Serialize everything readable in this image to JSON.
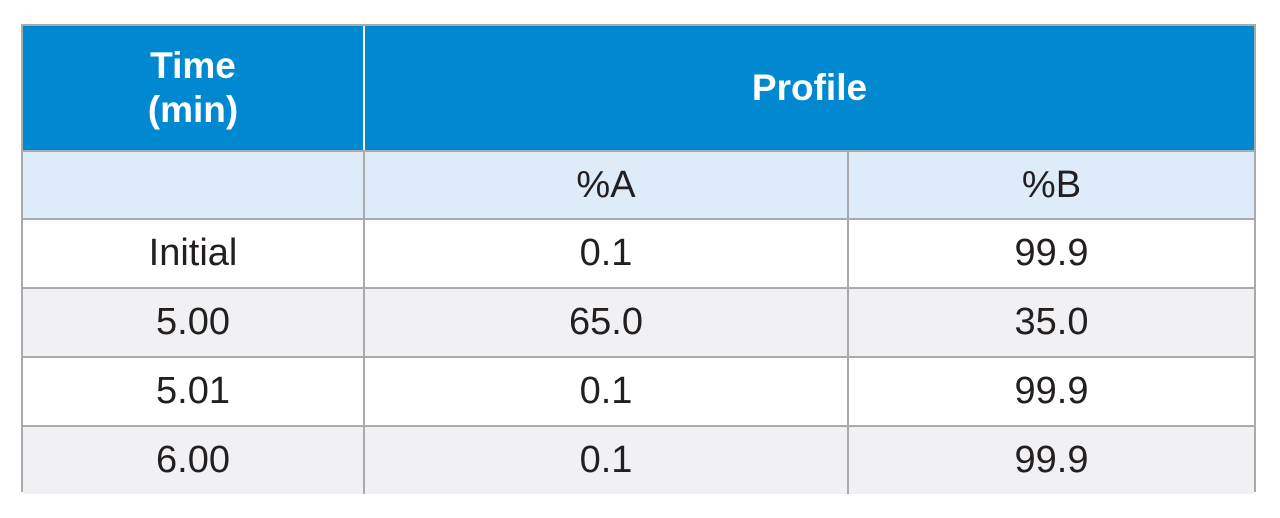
{
  "table": {
    "header": {
      "time_line1": "Time",
      "time_line2": "(min)",
      "profile": "Profile"
    },
    "subheader": {
      "time": "",
      "col_a": "%A",
      "col_b": "%B"
    },
    "rows": [
      {
        "time": "Initial",
        "a": "0.1",
        "b": "99.9"
      },
      {
        "time": "5.00",
        "a": "65.0",
        "b": "35.0"
      },
      {
        "time": "5.01",
        "a": "0.1",
        "b": "99.9"
      },
      {
        "time": "6.00",
        "a": "0.1",
        "b": "99.9"
      }
    ]
  },
  "colors": {
    "header_bg": "#0088d1",
    "subheader_bg": "#deebf8",
    "row_alt_bg": "#f1f1f4",
    "border": "#a8aaad",
    "text": "#231f20"
  }
}
